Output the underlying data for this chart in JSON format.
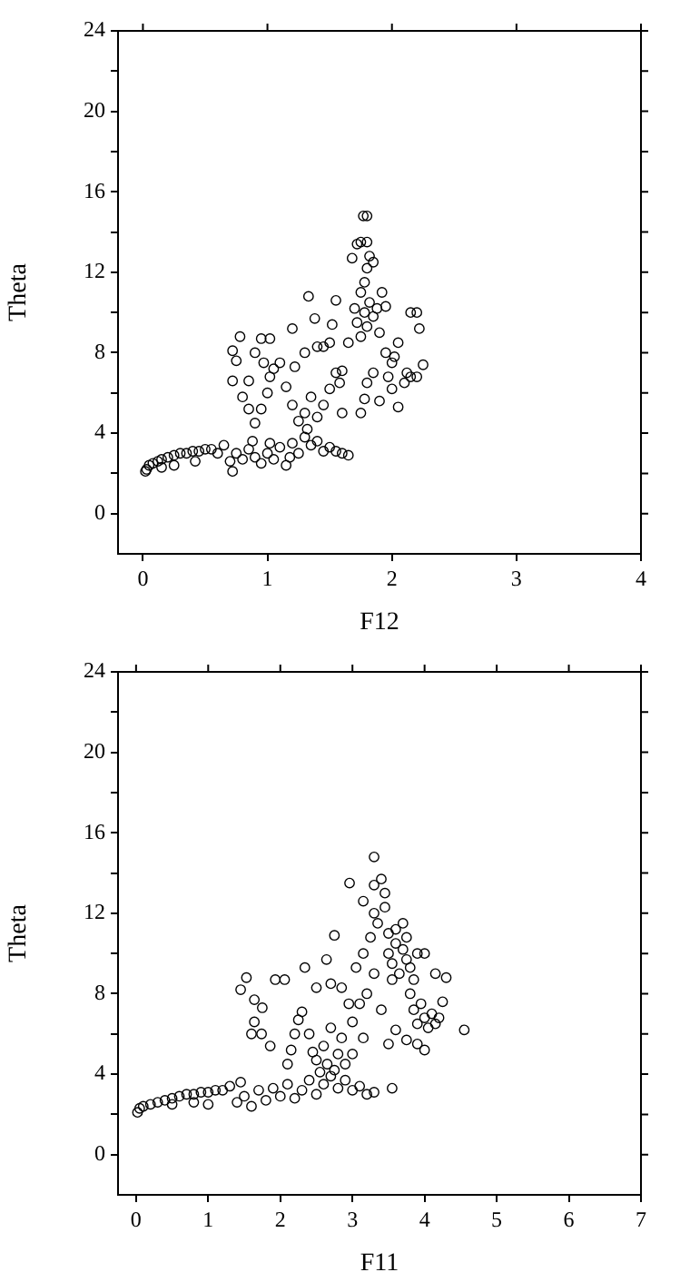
{
  "chart_data": [
    {
      "type": "scatter",
      "xlabel": "F12",
      "ylabel": "Theta",
      "marker": "circle",
      "color": "#000000",
      "grid": false,
      "xlim": [
        -0.2,
        4
      ],
      "ylim": [
        -2,
        24
      ],
      "xticks": [
        0,
        1,
        2,
        3,
        4
      ],
      "yticks": [
        0,
        {
          "value": 2,
          "label": null
        },
        4,
        {
          "value": 6,
          "label": null
        },
        8,
        {
          "value": 10,
          "label": null
        },
        12,
        {
          "value": 14,
          "label": null
        },
        16,
        {
          "value": 18,
          "label": null
        },
        20,
        {
          "value": 22,
          "label": null
        },
        24
      ],
      "x": [
        0.02,
        0.03,
        0.05,
        0.08,
        0.12,
        0.15,
        0.2,
        0.25,
        0.3,
        0.35,
        0.4,
        0.45,
        0.5,
        0.55,
        0.6,
        0.42,
        0.25,
        0.15,
        0.65,
        0.7,
        0.72,
        0.75,
        0.8,
        0.85,
        0.9,
        0.95,
        1.0,
        1.05,
        1.1,
        1.15,
        1.2,
        1.25,
        1.3,
        1.35,
        1.4,
        1.45,
        1.5,
        1.55,
        1.6,
        1.65,
        0.88,
        1.02,
        1.18,
        1.32,
        0.9,
        0.95,
        1.0,
        1.02,
        1.05,
        1.1,
        1.15,
        1.2,
        1.25,
        1.3,
        1.35,
        1.4,
        1.45,
        1.5,
        1.45,
        1.4,
        1.3,
        1.38,
        1.33,
        1.2,
        1.22,
        0.72,
        0.78,
        0.75,
        0.72,
        0.8,
        0.85,
        0.9,
        0.95,
        1.02,
        0.97,
        0.85,
        1.5,
        1.55,
        1.58,
        1.6,
        1.6,
        1.52,
        1.55,
        1.65,
        1.7,
        1.72,
        1.75,
        1.78,
        1.8,
        1.82,
        1.85,
        1.88,
        1.9,
        1.75,
        1.78,
        1.8,
        1.82,
        1.75,
        1.8,
        1.72,
        1.77,
        1.8,
        1.85,
        1.68,
        1.92,
        1.95,
        1.95,
        2.0,
        2.02,
        1.97,
        2.05,
        2.1,
        2.12,
        2.15,
        2.2,
        2.25,
        2.22,
        2.2,
        2.15,
        2.05,
        2.0,
        1.8,
        1.78,
        1.75,
        1.85,
        1.9
      ],
      "values": [
        2.1,
        2.2,
        2.4,
        2.5,
        2.6,
        2.7,
        2.8,
        2.9,
        3.0,
        3.0,
        3.1,
        3.1,
        3.2,
        3.2,
        3.0,
        2.6,
        2.4,
        2.3,
        3.4,
        2.6,
        2.1,
        3.0,
        2.7,
        3.2,
        2.8,
        2.5,
        3.0,
        2.7,
        3.3,
        2.4,
        3.5,
        3.0,
        3.8,
        3.4,
        3.6,
        3.1,
        3.3,
        3.1,
        3.0,
        2.9,
        3.6,
        3.5,
        2.8,
        4.2,
        4.5,
        5.2,
        6.0,
        6.8,
        7.2,
        7.5,
        6.3,
        5.4,
        4.6,
        5.0,
        5.8,
        4.8,
        5.4,
        8.5,
        8.3,
        8.3,
        8.0,
        9.7,
        10.8,
        9.2,
        7.3,
        8.1,
        8.8,
        7.6,
        6.6,
        5.8,
        6.6,
        8.0,
        8.7,
        8.7,
        7.5,
        5.2,
        6.2,
        7.0,
        6.5,
        5.0,
        7.1,
        9.4,
        10.6,
        8.5,
        10.2,
        9.5,
        11.0,
        10.0,
        9.3,
        10.5,
        9.8,
        10.2,
        9.0,
        8.8,
        11.5,
        12.2,
        12.8,
        13.5,
        13.5,
        13.4,
        14.8,
        14.8,
        12.5,
        12.7,
        11.0,
        10.3,
        8.0,
        7.5,
        7.8,
        6.8,
        8.5,
        6.5,
        7.0,
        6.8,
        6.8,
        7.4,
        9.2,
        10.0,
        10.0,
        5.3,
        6.2,
        6.5,
        5.7,
        5.0,
        7.0,
        5.6
      ]
    },
    {
      "type": "scatter",
      "xlabel": "F11",
      "ylabel": "Theta",
      "marker": "circle",
      "color": "#000000",
      "grid": false,
      "xlim": [
        -0.25,
        7
      ],
      "ylim": [
        -2,
        24
      ],
      "xticks": [
        0,
        1,
        2,
        3,
        4,
        5,
        6,
        7
      ],
      "yticks": [
        0,
        {
          "value": 2,
          "label": null
        },
        4,
        {
          "value": 6,
          "label": null
        },
        8,
        {
          "value": 10,
          "label": null
        },
        12,
        {
          "value": 14,
          "label": null
        },
        16,
        {
          "value": 18,
          "label": null
        },
        20,
        {
          "value": 22,
          "label": null
        },
        24
      ],
      "x": [
        0.02,
        0.05,
        0.1,
        0.2,
        0.3,
        0.4,
        0.5,
        0.6,
        0.7,
        0.8,
        0.9,
        1.0,
        1.1,
        1.2,
        0.5,
        0.8,
        1.0,
        1.3,
        1.4,
        1.45,
        1.5,
        1.6,
        1.7,
        1.8,
        1.9,
        2.0,
        2.1,
        2.2,
        2.3,
        2.4,
        2.5,
        2.6,
        2.7,
        2.8,
        2.9,
        3.0,
        3.1,
        3.2,
        3.3,
        2.65,
        2.75,
        2.55,
        2.1,
        2.15,
        2.2,
        2.25,
        2.3,
        2.4,
        2.45,
        2.5,
        2.6,
        2.7,
        2.8,
        2.85,
        2.9,
        3.0,
        2.95,
        2.85,
        2.7,
        2.5,
        3.0,
        3.1,
        3.15,
        3.2,
        3.3,
        3.05,
        3.15,
        3.25,
        3.35,
        3.3,
        3.45,
        1.45,
        1.53,
        1.64,
        1.64,
        1.74,
        1.86,
        1.93,
        2.06,
        2.34,
        2.64,
        2.75,
        1.6,
        1.75,
        3.3,
        2.96,
        3.4,
        3.3,
        3.45,
        3.15,
        3.5,
        3.55,
        3.6,
        3.65,
        3.7,
        3.75,
        3.8,
        3.6,
        3.7,
        3.55,
        3.85,
        3.5,
        3.9,
        4.0,
        3.75,
        3.8,
        3.85,
        3.9,
        3.95,
        4.0,
        4.05,
        4.1,
        4.15,
        4.2,
        4.25,
        4.3,
        4.15,
        3.9,
        3.75,
        4.0,
        4.55,
        3.5,
        3.6,
        3.4,
        3.55
      ],
      "values": [
        2.1,
        2.3,
        2.4,
        2.5,
        2.6,
        2.7,
        2.8,
        2.9,
        3.0,
        3.0,
        3.1,
        3.1,
        3.2,
        3.2,
        2.5,
        2.6,
        2.5,
        3.4,
        2.6,
        3.6,
        2.9,
        2.4,
        3.2,
        2.7,
        3.3,
        2.9,
        3.5,
        2.8,
        3.2,
        3.7,
        3.0,
        3.5,
        3.9,
        3.3,
        3.7,
        3.2,
        3.4,
        3.0,
        3.1,
        4.5,
        4.2,
        4.1,
        4.5,
        5.2,
        6.0,
        6.7,
        7.1,
        6.0,
        5.1,
        4.7,
        5.4,
        6.3,
        5.0,
        5.8,
        4.5,
        5.0,
        7.5,
        8.3,
        8.5,
        8.3,
        6.6,
        7.5,
        5.8,
        8.0,
        9.0,
        9.3,
        10.0,
        10.8,
        11.5,
        12.0,
        12.3,
        8.2,
        8.8,
        7.7,
        6.6,
        6.0,
        5.4,
        8.7,
        8.7,
        9.3,
        9.7,
        10.9,
        6.0,
        7.3,
        14.8,
        13.5,
        13.7,
        13.4,
        13.0,
        12.6,
        10.0,
        9.5,
        10.5,
        9.0,
        10.2,
        9.7,
        9.3,
        11.2,
        11.5,
        8.7,
        8.7,
        11.0,
        10.0,
        10.0,
        10.8,
        8.0,
        7.2,
        6.5,
        7.5,
        6.8,
        6.3,
        7.0,
        6.5,
        6.8,
        7.6,
        8.8,
        9.0,
        5.5,
        5.7,
        5.2,
        6.2,
        5.5,
        6.2,
        7.2,
        3.3
      ]
    }
  ]
}
